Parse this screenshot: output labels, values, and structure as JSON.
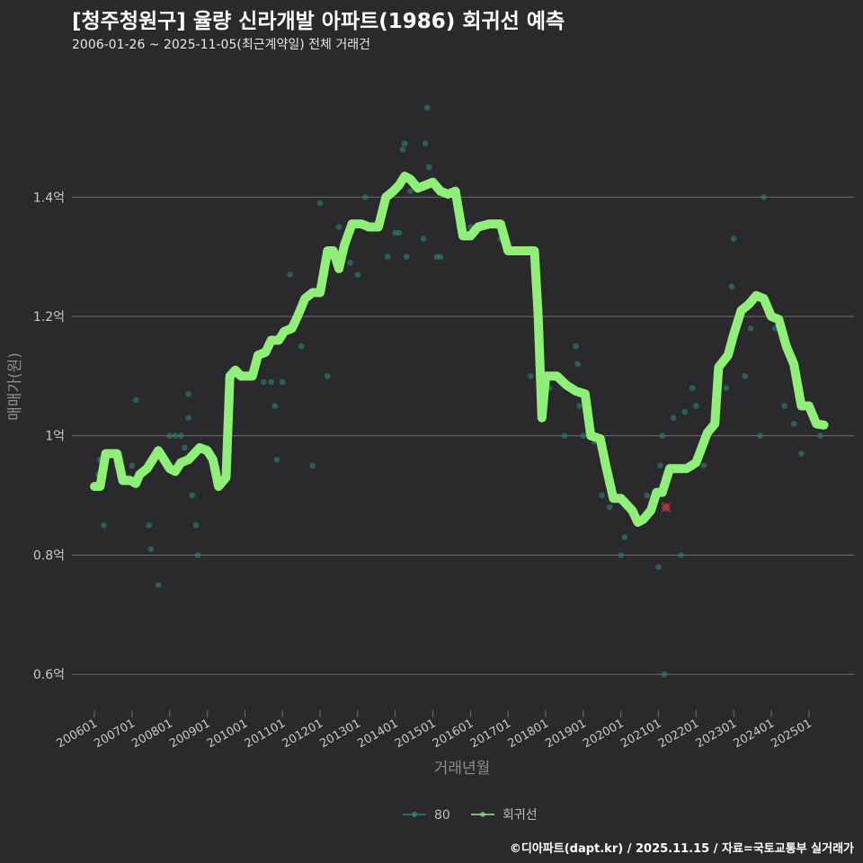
{
  "title": "[청주청원구] 율량 신라개발 아파트(1986) 회귀선 예측",
  "subtitle": "2006-01-26 ~ 2025-11-05(최근계약일) 전체 거래건",
  "footer": "©디아파트(dapt.kr) / 2025.11.15 / 자료=국토교통부 실거래가",
  "colors": {
    "background": "#2a2a2d",
    "grid": "#6e6e6e",
    "regression_line": "#8fef78",
    "points": "#2a7f6f",
    "highlight_point": "#a33a3a",
    "axis_text": "#c8c8c8"
  },
  "chart_data": {
    "type": "scatter+line",
    "xlabel": "거래년월",
    "ylabel": "매매가(원)",
    "x_unit": "year (decimal)",
    "xlim": [
      2005.4,
      2026.2
    ],
    "ylim": [
      0.54,
      1.64
    ],
    "y_ticks": [
      {
        "value": 0.6,
        "label": "0.6억"
      },
      {
        "value": 0.8,
        "label": "0.8억"
      },
      {
        "value": 1.0,
        "label": "1억"
      },
      {
        "value": 1.2,
        "label": "1.2억"
      },
      {
        "value": 1.4,
        "label": "1.4억"
      }
    ],
    "x_ticks": [
      {
        "value": 2006.0,
        "label": "200601"
      },
      {
        "value": 2007.0,
        "label": "200701"
      },
      {
        "value": 2008.0,
        "label": "200801"
      },
      {
        "value": 2009.0,
        "label": "200901"
      },
      {
        "value": 2010.0,
        "label": "201001"
      },
      {
        "value": 2011.0,
        "label": "201101"
      },
      {
        "value": 2012.0,
        "label": "201201"
      },
      {
        "value": 2013.0,
        "label": "201301"
      },
      {
        "value": 2014.0,
        "label": "201401"
      },
      {
        "value": 2015.0,
        "label": "201501"
      },
      {
        "value": 2016.0,
        "label": "201601"
      },
      {
        "value": 2017.0,
        "label": "201701"
      },
      {
        "value": 2018.0,
        "label": "201801"
      },
      {
        "value": 2019.0,
        "label": "201901"
      },
      {
        "value": 2020.0,
        "label": "202001"
      },
      {
        "value": 2021.0,
        "label": "202101"
      },
      {
        "value": 2022.0,
        "label": "202201"
      },
      {
        "value": 2023.0,
        "label": "202301"
      },
      {
        "value": 2024.0,
        "label": "202401"
      },
      {
        "value": 2025.0,
        "label": "202501"
      }
    ],
    "legend": [
      {
        "name": "80",
        "kind": "points"
      },
      {
        "name": "회귀선",
        "kind": "line"
      }
    ],
    "series": [
      {
        "name": "80",
        "kind": "scatter",
        "points": [
          [
            2006.1,
            0.935
          ],
          [
            2006.15,
            0.96
          ],
          [
            2006.25,
            0.85
          ],
          [
            2006.6,
            0.95
          ],
          [
            2006.9,
            0.93
          ],
          [
            2007.0,
            0.95
          ],
          [
            2007.1,
            1.06
          ],
          [
            2007.45,
            0.85
          ],
          [
            2007.5,
            0.81
          ],
          [
            2007.7,
            0.75
          ],
          [
            2007.85,
            0.96
          ],
          [
            2008.0,
            1.0
          ],
          [
            2008.15,
            1.0
          ],
          [
            2008.3,
            1.0
          ],
          [
            2008.4,
            0.98
          ],
          [
            2008.5,
            1.07
          ],
          [
            2008.5,
            1.03
          ],
          [
            2008.6,
            0.9
          ],
          [
            2008.7,
            0.85
          ],
          [
            2008.75,
            0.8
          ],
          [
            2009.0,
            0.98
          ],
          [
            2009.4,
            0.92
          ],
          [
            2009.8,
            1.1
          ],
          [
            2010.2,
            1.1
          ],
          [
            2010.5,
            1.09
          ],
          [
            2010.7,
            1.09
          ],
          [
            2010.8,
            1.05
          ],
          [
            2010.85,
            0.96
          ],
          [
            2011.0,
            1.09
          ],
          [
            2011.2,
            1.27
          ],
          [
            2011.5,
            1.15
          ],
          [
            2011.8,
            0.95
          ],
          [
            2012.0,
            1.39
          ],
          [
            2012.2,
            1.1
          ],
          [
            2012.5,
            1.35
          ],
          [
            2012.8,
            1.29
          ],
          [
            2013.0,
            1.27
          ],
          [
            2013.2,
            1.4
          ],
          [
            2013.5,
            1.35
          ],
          [
            2013.8,
            1.3
          ],
          [
            2014.0,
            1.34
          ],
          [
            2014.1,
            1.34
          ],
          [
            2014.2,
            1.48
          ],
          [
            2014.25,
            1.49
          ],
          [
            2014.3,
            1.3
          ],
          [
            2014.4,
            1.41
          ],
          [
            2014.6,
            1.42
          ],
          [
            2014.75,
            1.33
          ],
          [
            2014.8,
            1.49
          ],
          [
            2014.85,
            1.55
          ],
          [
            2014.9,
            1.45
          ],
          [
            2015.1,
            1.3
          ],
          [
            2015.2,
            1.3
          ],
          [
            2015.5,
            1.41
          ],
          [
            2015.7,
            1.35
          ],
          [
            2016.0,
            1.35
          ],
          [
            2016.3,
            1.35
          ],
          [
            2016.8,
            1.33
          ],
          [
            2017.0,
            1.31
          ],
          [
            2017.6,
            1.1
          ],
          [
            2017.9,
            1.09
          ],
          [
            2018.1,
            1.08
          ],
          [
            2018.5,
            1.0
          ],
          [
            2018.8,
            1.15
          ],
          [
            2018.85,
            1.12
          ],
          [
            2018.9,
            1.05
          ],
          [
            2019.0,
            1.0
          ],
          [
            2019.3,
            0.99
          ],
          [
            2019.5,
            0.9
          ],
          [
            2019.7,
            0.88
          ],
          [
            2020.0,
            0.8
          ],
          [
            2020.1,
            0.83
          ],
          [
            2020.4,
            0.86
          ],
          [
            2020.7,
            0.9
          ],
          [
            2021.0,
            0.78
          ],
          [
            2021.05,
            0.95
          ],
          [
            2021.1,
            1.0
          ],
          [
            2021.15,
            0.6
          ],
          [
            2021.4,
            1.03
          ],
          [
            2021.6,
            0.8
          ],
          [
            2021.7,
            1.04
          ],
          [
            2021.9,
            1.08
          ],
          [
            2022.0,
            1.05
          ],
          [
            2022.1,
            0.97
          ],
          [
            2022.2,
            0.95
          ],
          [
            2022.8,
            1.08
          ],
          [
            2022.95,
            1.25
          ],
          [
            2023.0,
            1.33
          ],
          [
            2023.3,
            1.1
          ],
          [
            2023.45,
            1.18
          ],
          [
            2023.7,
            1.0
          ],
          [
            2023.8,
            1.4
          ],
          [
            2024.1,
            1.18
          ],
          [
            2024.35,
            1.05
          ],
          [
            2024.6,
            1.02
          ],
          [
            2024.8,
            0.97
          ],
          [
            2025.3,
            1.0
          ],
          [
            2025.4,
            1.02
          ]
        ]
      },
      {
        "name": "highlight",
        "kind": "marker",
        "points": [
          [
            2021.2,
            0.88
          ]
        ]
      },
      {
        "name": "회귀선",
        "kind": "line",
        "points": [
          [
            2006.0,
            0.915
          ],
          [
            2006.15,
            0.915
          ],
          [
            2006.3,
            0.97
          ],
          [
            2006.6,
            0.97
          ],
          [
            2006.75,
            0.925
          ],
          [
            2006.95,
            0.925
          ],
          [
            2007.1,
            0.92
          ],
          [
            2007.2,
            0.935
          ],
          [
            2007.4,
            0.945
          ],
          [
            2007.55,
            0.96
          ],
          [
            2007.7,
            0.975
          ],
          [
            2007.85,
            0.96
          ],
          [
            2008.0,
            0.945
          ],
          [
            2008.15,
            0.94
          ],
          [
            2008.3,
            0.955
          ],
          [
            2008.5,
            0.96
          ],
          [
            2008.65,
            0.97
          ],
          [
            2008.8,
            0.98
          ],
          [
            2009.0,
            0.975
          ],
          [
            2009.15,
            0.96
          ],
          [
            2009.3,
            0.915
          ],
          [
            2009.5,
            0.93
          ],
          [
            2009.6,
            1.1
          ],
          [
            2009.75,
            1.11
          ],
          [
            2009.9,
            1.1
          ],
          [
            2010.2,
            1.1
          ],
          [
            2010.35,
            1.135
          ],
          [
            2010.55,
            1.14
          ],
          [
            2010.7,
            1.16
          ],
          [
            2010.9,
            1.16
          ],
          [
            2011.05,
            1.175
          ],
          [
            2011.25,
            1.18
          ],
          [
            2011.4,
            1.2
          ],
          [
            2011.6,
            1.23
          ],
          [
            2011.8,
            1.24
          ],
          [
            2012.0,
            1.24
          ],
          [
            2012.2,
            1.31
          ],
          [
            2012.35,
            1.31
          ],
          [
            2012.5,
            1.28
          ],
          [
            2012.65,
            1.32
          ],
          [
            2012.85,
            1.355
          ],
          [
            2013.1,
            1.355
          ],
          [
            2013.3,
            1.35
          ],
          [
            2013.55,
            1.35
          ],
          [
            2013.75,
            1.4
          ],
          [
            2013.95,
            1.41
          ],
          [
            2014.1,
            1.42
          ],
          [
            2014.25,
            1.435
          ],
          [
            2014.4,
            1.43
          ],
          [
            2014.6,
            1.415
          ],
          [
            2014.8,
            1.42
          ],
          [
            2015.0,
            1.425
          ],
          [
            2015.2,
            1.41
          ],
          [
            2015.4,
            1.405
          ],
          [
            2015.6,
            1.41
          ],
          [
            2015.8,
            1.335
          ],
          [
            2016.0,
            1.335
          ],
          [
            2016.2,
            1.35
          ],
          [
            2016.5,
            1.355
          ],
          [
            2016.8,
            1.355
          ],
          [
            2017.0,
            1.31
          ],
          [
            2017.3,
            1.31
          ],
          [
            2017.7,
            1.31
          ],
          [
            2017.8,
            1.2
          ],
          [
            2017.9,
            1.03
          ],
          [
            2018.0,
            1.1
          ],
          [
            2018.3,
            1.1
          ],
          [
            2018.55,
            1.085
          ],
          [
            2018.8,
            1.075
          ],
          [
            2019.05,
            1.07
          ],
          [
            2019.2,
            1.0
          ],
          [
            2019.45,
            0.995
          ],
          [
            2019.6,
            0.95
          ],
          [
            2019.8,
            0.895
          ],
          [
            2020.0,
            0.895
          ],
          [
            2020.3,
            0.875
          ],
          [
            2020.45,
            0.855
          ],
          [
            2020.6,
            0.86
          ],
          [
            2020.8,
            0.875
          ],
          [
            2020.95,
            0.905
          ],
          [
            2021.1,
            0.905
          ],
          [
            2021.3,
            0.945
          ],
          [
            2021.5,
            0.945
          ],
          [
            2021.75,
            0.945
          ],
          [
            2022.0,
            0.955
          ],
          [
            2022.3,
            1.005
          ],
          [
            2022.5,
            1.02
          ],
          [
            2022.6,
            1.115
          ],
          [
            2022.85,
            1.135
          ],
          [
            2023.0,
            1.17
          ],
          [
            2023.2,
            1.21
          ],
          [
            2023.4,
            1.22
          ],
          [
            2023.6,
            1.235
          ],
          [
            2023.8,
            1.23
          ],
          [
            2024.0,
            1.2
          ],
          [
            2024.2,
            1.195
          ],
          [
            2024.4,
            1.15
          ],
          [
            2024.6,
            1.12
          ],
          [
            2024.8,
            1.05
          ],
          [
            2025.0,
            1.05
          ],
          [
            2025.2,
            1.02
          ],
          [
            2025.4,
            1.018
          ]
        ]
      }
    ]
  }
}
